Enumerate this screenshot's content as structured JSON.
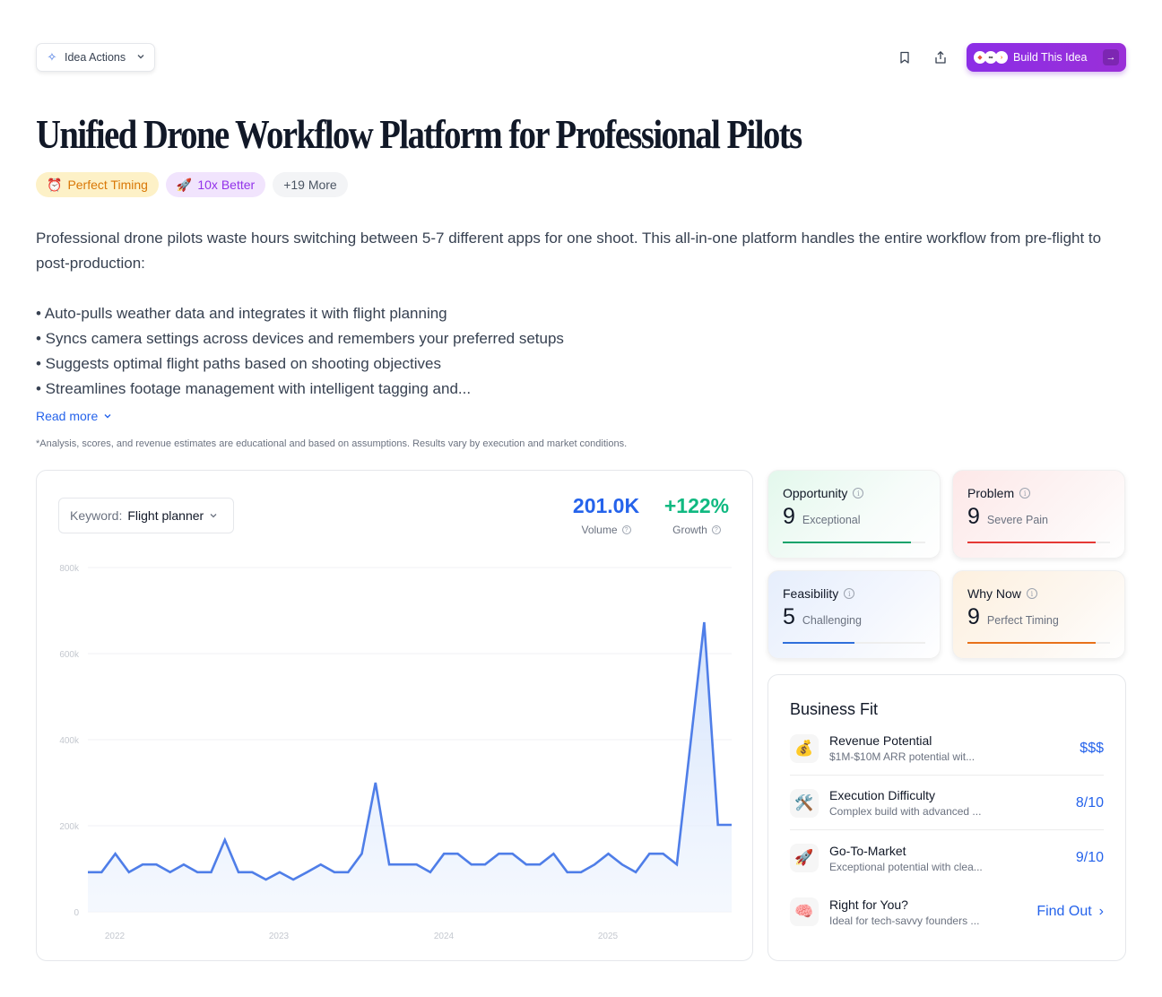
{
  "header": {
    "idea_actions_label": "Idea Actions",
    "build_button_label": "Build This Idea",
    "bookmark_icon": "bookmark-icon",
    "share_icon": "share-icon"
  },
  "title": "Unified Drone Workflow Platform for Professional Pilots",
  "tags": [
    {
      "icon": "⏰",
      "label": "Perfect Timing"
    },
    {
      "icon": "🚀",
      "label": "10x Better"
    },
    {
      "label": "+19 More"
    }
  ],
  "description": {
    "intro": "Professional drone pilots waste hours switching between 5-7 different apps for one shoot. This all-in-one platform handles the entire workflow from pre-flight to post-production:",
    "bullets": [
      "• Auto-pulls weather data and integrates it with flight planning",
      "• Syncs camera settings across devices and remembers your preferred setups",
      "• Suggests optimal flight paths based on shooting objectives",
      "• Streamlines footage management with intelligent tagging and..."
    ],
    "read_more": "Read more"
  },
  "disclaimer": "*Analysis, scores, and revenue estimates are educational and based on assumptions. Results vary by execution and market conditions.",
  "trend": {
    "keyword_label": "Keyword:",
    "keyword_value": "Flight planner",
    "volume_value": "201.0K",
    "volume_label": "Volume",
    "growth_value": "+122%",
    "growth_label": "Growth",
    "colors": {
      "volume": "#2563eb",
      "growth": "#10b981",
      "line": "#4f7ee8"
    }
  },
  "chart_data": {
    "type": "area",
    "title": "",
    "xlabel": "",
    "ylabel": "",
    "x_tick_labels": [
      "2022",
      "2023",
      "2024",
      "2025"
    ],
    "y_tick_labels": [
      "0",
      "200k",
      "400k",
      "600k",
      "800k"
    ],
    "ylim": [
      0,
      800000
    ],
    "grid": true,
    "legend": false,
    "series": [
      {
        "name": "Flight planner",
        "values": [
          92000,
          92000,
          135000,
          92000,
          110000,
          110000,
          92000,
          110000,
          92000,
          92000,
          167000,
          92000,
          92000,
          75000,
          92000,
          75000,
          92000,
          110000,
          92000,
          92000,
          135000,
          300000,
          110000,
          110000,
          110000,
          92000,
          135000,
          135000,
          110000,
          110000,
          135000,
          135000,
          110000,
          110000,
          135000,
          92000,
          92000,
          110000,
          135000,
          110000,
          92000,
          135000,
          135000,
          110000,
          392000,
          673000,
          202000,
          202000
        ]
      }
    ]
  },
  "scores": [
    {
      "title": "Opportunity",
      "value": "9",
      "label": "Exceptional",
      "fill_pct": 90,
      "color": "#10a36b",
      "bg": "linear-gradient(135deg,#e3f8ec 0%,#f7fcfa 60%,#ffffff 100%)"
    },
    {
      "title": "Problem",
      "value": "9",
      "label": "Severe Pain",
      "fill_pct": 90,
      "color": "#e53935",
      "bg": "linear-gradient(135deg,#fde8e8 0%,#fdf5f5 60%,#ffffff 100%)"
    },
    {
      "title": "Feasibility",
      "value": "5",
      "label": "Challenging",
      "fill_pct": 50,
      "color": "#2f6fdb",
      "bg": "linear-gradient(135deg,#e6eefc 0%,#f4f7fe 60%,#ffffff 100%)"
    },
    {
      "title": "Why Now",
      "value": "9",
      "label": "Perfect Timing",
      "fill_pct": 90,
      "color": "#e8711a",
      "bg": "linear-gradient(135deg,#fdf0df 0%,#fdf7f0 60%,#ffffff 100%)"
    }
  ],
  "business_fit": {
    "title": "Business Fit",
    "items": [
      {
        "icon": "💰",
        "name": "Revenue Potential",
        "sub": "$1M-$10M ARR potential wit...",
        "value": "$$$"
      },
      {
        "icon": "🛠️",
        "name": "Execution Difficulty",
        "sub": "Complex build with advanced ...",
        "value": "8/10"
      },
      {
        "icon": "🚀",
        "name": "Go-To-Market",
        "sub": "Exceptional potential with clea...",
        "value": "9/10"
      },
      {
        "icon": "🧠",
        "name": "Right for You?",
        "sub": "Ideal for tech-savvy founders ...",
        "value": "Find Out"
      }
    ]
  }
}
